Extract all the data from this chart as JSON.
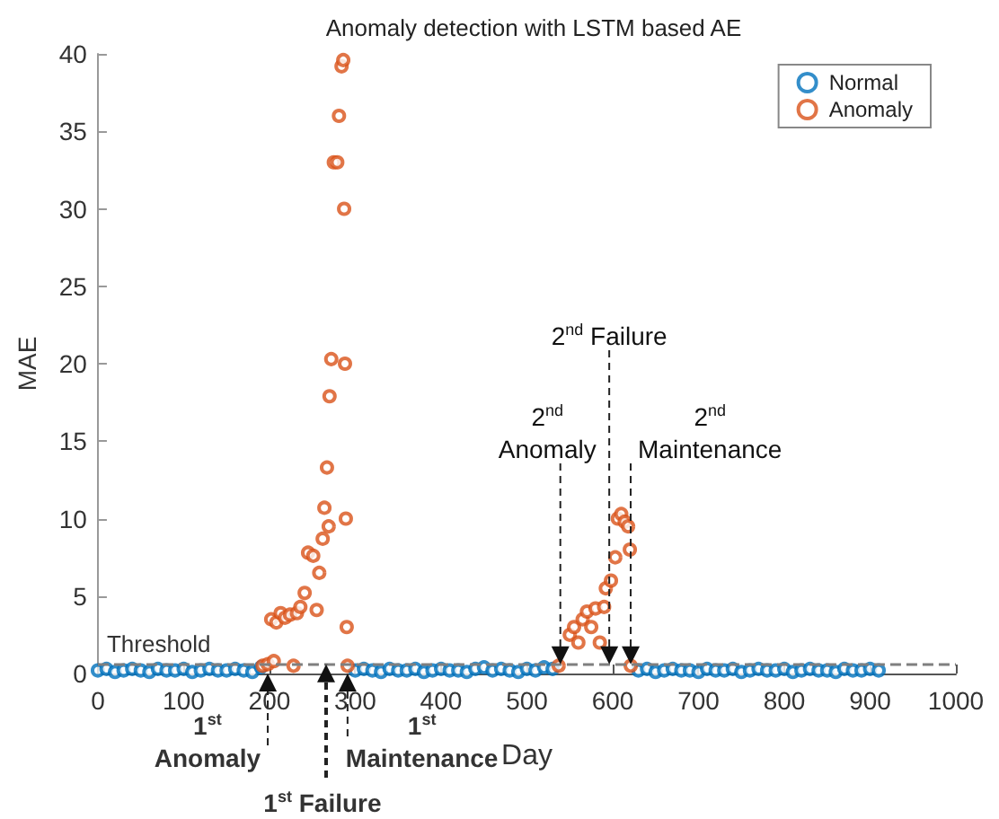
{
  "chart_data": {
    "type": "scatter",
    "title": "Anomaly detection with LSTM based AE",
    "xlabel": "Day",
    "ylabel": "MAE",
    "xlim": [
      0,
      1000
    ],
    "xticks": [
      0,
      100,
      200,
      300,
      400,
      500,
      600,
      700,
      800,
      900,
      1000
    ],
    "ylim": [
      0,
      40
    ],
    "yticks": [
      0,
      5,
      10,
      15,
      20,
      25,
      30,
      35,
      40
    ],
    "grid": false,
    "legend": "top right",
    "marker": "circle",
    "series": [
      {
        "name": "Normal",
        "color": "#0072bd",
        "x": [
          0,
          10,
          20,
          30,
          40,
          50,
          60,
          70,
          80,
          90,
          100,
          110,
          120,
          130,
          140,
          150,
          160,
          170,
          180,
          190,
          300,
          310,
          320,
          330,
          340,
          350,
          360,
          370,
          380,
          390,
          400,
          410,
          420,
          430,
          440,
          450,
          460,
          470,
          480,
          490,
          500,
          510,
          520,
          530,
          630,
          640,
          650,
          660,
          670,
          680,
          690,
          700,
          710,
          720,
          730,
          740,
          750,
          760,
          770,
          780,
          790,
          800,
          810,
          820,
          830,
          840,
          850,
          860,
          870,
          880,
          890,
          900,
          910
        ],
        "values": [
          0.2,
          0.3,
          0.1,
          0.2,
          0.3,
          0.2,
          0.1,
          0.3,
          0.2,
          0.2,
          0.3,
          0.1,
          0.2,
          0.3,
          0.2,
          0.2,
          0.3,
          0.2,
          0.1,
          0.4,
          0.2,
          0.3,
          0.2,
          0.1,
          0.3,
          0.2,
          0.2,
          0.3,
          0.1,
          0.2,
          0.3,
          0.2,
          0.2,
          0.1,
          0.3,
          0.4,
          0.2,
          0.3,
          0.2,
          0.1,
          0.3,
          0.2,
          0.4,
          0.3,
          0.2,
          0.3,
          0.1,
          0.2,
          0.3,
          0.2,
          0.2,
          0.1,
          0.3,
          0.2,
          0.2,
          0.3,
          0.1,
          0.2,
          0.3,
          0.2,
          0.2,
          0.3,
          0.1,
          0.2,
          0.3,
          0.2,
          0.2,
          0.1,
          0.3,
          0.2,
          0.2,
          0.3,
          0.2
        ]
      },
      {
        "name": "Anomaly",
        "color": "#d95319",
        "x": [
          192,
          198,
          202,
          205,
          208,
          213,
          218,
          224,
          228,
          232,
          236,
          241,
          245,
          251,
          255,
          258,
          262,
          264,
          267,
          269,
          270,
          272,
          275,
          279,
          281,
          284,
          286,
          287,
          288,
          289,
          290,
          291,
          537,
          550,
          555,
          560,
          565,
          570,
          575,
          580,
          585,
          590,
          592,
          598,
          603,
          606,
          610,
          614,
          618,
          620,
          621
        ],
        "values": [
          0.5,
          0.6,
          3.5,
          0.8,
          3.3,
          3.9,
          3.6,
          3.8,
          0.5,
          3.9,
          4.3,
          5.2,
          7.8,
          7.6,
          4.1,
          6.5,
          8.7,
          10.7,
          13.3,
          9.5,
          17.9,
          20.3,
          33,
          33,
          36,
          39.2,
          39.6,
          30,
          20,
          10,
          3,
          0.5,
          0.5,
          2.5,
          3,
          2,
          3.5,
          4,
          3,
          4.2,
          2,
          4.3,
          5.5,
          6,
          7.5,
          10,
          10.3,
          9.8,
          9.5,
          8,
          0.5
        ]
      }
    ],
    "ref_lines": [
      {
        "axis": "y",
        "value": 0.6,
        "label": "Threshold",
        "color": "#7f7f7f",
        "line_style": "dashed"
      }
    ],
    "annotations": [
      {
        "text": "1$^{st}$\nAnomaly",
        "x": 198,
        "y": 0
      },
      {
        "text": "1$^{st}$ Failure",
        "x": 266,
        "y": 0.6
      },
      {
        "text": "1$^{st}$\nMaintenance",
        "x": 291,
        "y": 0
      },
      {
        "text": "2$^{nd}$\nAnomaly",
        "x": 539,
        "y": 0.6
      },
      {
        "text": "2$^{nd}$ Failure",
        "x": 596,
        "y": 0.6
      },
      {
        "text": "2$^{nd}$\nMaintenance",
        "x": 621,
        "y": 0.6
      }
    ]
  }
}
